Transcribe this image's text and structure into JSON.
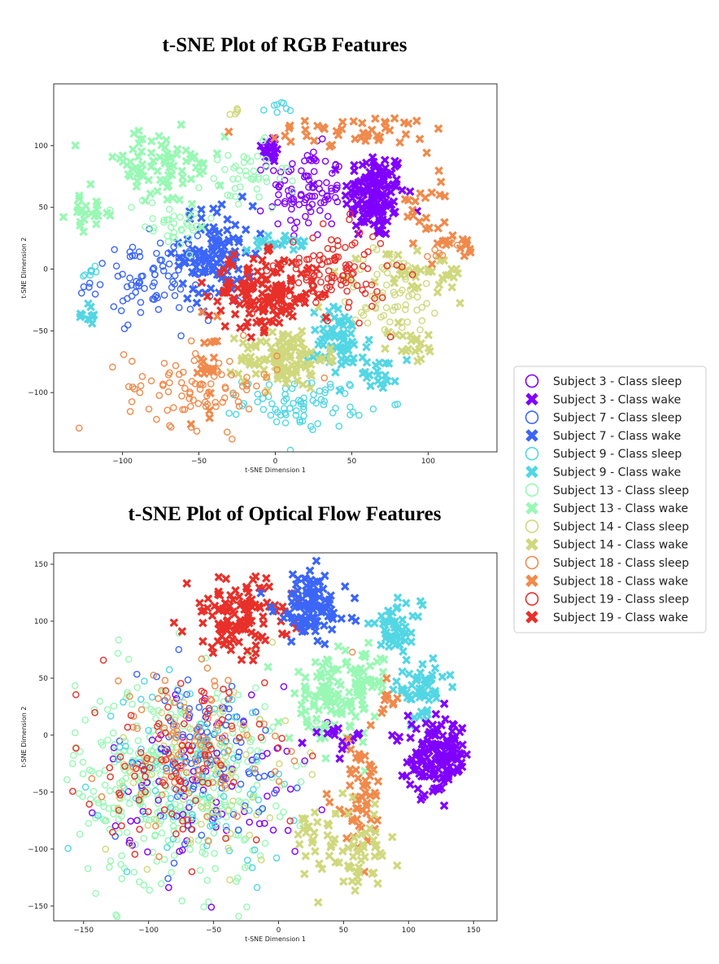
{
  "chart_data": [
    {
      "type": "scatter",
      "title": "t-SNE Plot of RGB Features",
      "xlabel": "t-SNE Dimension 1",
      "ylabel": "t-SNE Dimension 2",
      "xlim": [
        -145,
        145
      ],
      "ylim": [
        -148,
        150
      ],
      "xticks": [
        -100,
        -50,
        0,
        50,
        100
      ],
      "yticks": [
        100,
        50,
        0,
        -50,
        -100
      ],
      "clusters": [
        {
          "series": "Subject 3 - Class wake",
          "cx": 65,
          "cy": 60,
          "sx": 10,
          "sy": 18,
          "n": 140
        },
        {
          "series": "Subject 3 - Class wake",
          "cx": -3,
          "cy": 98,
          "sx": 3,
          "sy": 6,
          "n": 20
        },
        {
          "series": "Subject 3 - Class sleep",
          "cx": 20,
          "cy": 62,
          "sx": 12,
          "sy": 18,
          "n": 95
        },
        {
          "series": "Subject 7 - Class wake",
          "cx": -38,
          "cy": 12,
          "sx": 12,
          "sy": 20,
          "n": 110
        },
        {
          "series": "Subject 7 - Class sleep",
          "cx": -80,
          "cy": -8,
          "sx": 20,
          "sy": 16,
          "n": 95
        },
        {
          "series": "Subject 9 - Class wake",
          "cx": 42,
          "cy": -60,
          "sx": 10,
          "sy": 14,
          "n": 65
        },
        {
          "series": "Subject 9 - Class wake",
          "cx": 68,
          "cy": -83,
          "sx": 6,
          "sy": 7,
          "n": 22
        },
        {
          "series": "Subject 9 - Class wake",
          "cx": 0,
          "cy": 21,
          "sx": 9,
          "sy": 3,
          "n": 22
        },
        {
          "series": "Subject 9 - Class wake",
          "cx": -123,
          "cy": -38,
          "sx": 3,
          "sy": 5,
          "n": 12
        },
        {
          "series": "Subject 9 - Class sleep",
          "cx": 20,
          "cy": -108,
          "sx": 20,
          "sy": 10,
          "n": 75
        },
        {
          "series": "Subject 9 - Class sleep",
          "cx": -120,
          "cy": -2,
          "sx": 4,
          "sy": 4,
          "n": 8
        },
        {
          "series": "Subject 9 - Class sleep",
          "cx": 0,
          "cy": 128,
          "sx": 4,
          "sy": 4,
          "n": 8
        },
        {
          "series": "Subject 13 - Class wake",
          "cx": -78,
          "cy": 82,
          "sx": 22,
          "sy": 16,
          "n": 85
        },
        {
          "series": "Subject 13 - Class wake",
          "cx": -120,
          "cy": 45,
          "sx": 8,
          "sy": 6,
          "n": 20
        },
        {
          "series": "Subject 13 - Class sleep",
          "cx": -20,
          "cy": 72,
          "sx": 14,
          "sy": 14,
          "n": 45
        },
        {
          "series": "Subject 13 - Class sleep",
          "cx": -70,
          "cy": 38,
          "sx": 15,
          "sy": 10,
          "n": 35
        },
        {
          "series": "Subject 14 - Class wake",
          "cx": 5,
          "cy": -72,
          "sx": 14,
          "sy": 12,
          "n": 110
        },
        {
          "series": "Subject 14 - Class wake",
          "cx": 95,
          "cy": -5,
          "sx": 18,
          "sy": 12,
          "n": 40
        },
        {
          "series": "Subject 14 - Class wake",
          "cx": 90,
          "cy": -60,
          "sx": 8,
          "sy": 8,
          "n": 20
        },
        {
          "series": "Subject 14 - Class sleep",
          "cx": 75,
          "cy": -20,
          "sx": 18,
          "sy": 18,
          "n": 70
        },
        {
          "series": "Subject 14 - Class sleep",
          "cx": -25,
          "cy": 125,
          "sx": 3,
          "sy": 3,
          "n": 5
        },
        {
          "series": "Subject 18 - Class wake",
          "cx": 55,
          "cy": 112,
          "sx": 32,
          "sy": 6,
          "n": 45
        },
        {
          "series": "Subject 18 - Class wake",
          "cx": 103,
          "cy": 55,
          "sx": 8,
          "sy": 25,
          "n": 25
        },
        {
          "series": "Subject 18 - Class wake",
          "cx": -45,
          "cy": -78,
          "sx": 5,
          "sy": 20,
          "n": 20
        },
        {
          "series": "Subject 18 - Class wake",
          "cx": 122,
          "cy": 20,
          "sx": 6,
          "sy": 4,
          "n": 12
        },
        {
          "series": "Subject 18 - Class sleep",
          "cx": -48,
          "cy": -95,
          "sx": 25,
          "sy": 16,
          "n": 95
        },
        {
          "series": "Subject 18 - Class sleep",
          "cx": 110,
          "cy": 20,
          "sx": 6,
          "sy": 4,
          "n": 8
        },
        {
          "series": "Subject 19 - Class wake",
          "cx": -8,
          "cy": -20,
          "sx": 18,
          "sy": 15,
          "n": 150
        },
        {
          "series": "Subject 19 - Class sleep",
          "cx": 38,
          "cy": -3,
          "sx": 18,
          "sy": 18,
          "n": 110
        }
      ]
    },
    {
      "type": "scatter",
      "title": "t-SNE Plot of Optical Flow Features",
      "xlabel": "t-SNE Dimension 1",
      "ylabel": "t-SNE Dimension 2",
      "xlim": [
        -173,
        168
      ],
      "ylim": [
        -163,
        160
      ],
      "xticks": [
        -150,
        -100,
        -50,
        0,
        50,
        100,
        150
      ],
      "yticks": [
        150,
        100,
        50,
        0,
        -50,
        -100,
        -150
      ],
      "clusters": [
        {
          "series": "Subject 13 - Class sleep",
          "cx": -80,
          "cy": -40,
          "sx": 38,
          "sy": 45,
          "n": 380
        },
        {
          "series": "Subject 3 - Class sleep",
          "cx": -55,
          "cy": -35,
          "sx": 38,
          "sy": 40,
          "n": 90
        },
        {
          "series": "Subject 7 - Class sleep",
          "cx": -60,
          "cy": -20,
          "sx": 38,
          "sy": 40,
          "n": 95
        },
        {
          "series": "Subject 9 - Class sleep",
          "cx": -60,
          "cy": -30,
          "sx": 38,
          "sy": 40,
          "n": 90
        },
        {
          "series": "Subject 14 - Class sleep",
          "cx": -55,
          "cy": -35,
          "sx": 38,
          "sy": 40,
          "n": 80
        },
        {
          "series": "Subject 18 - Class sleep",
          "cx": -70,
          "cy": -10,
          "sx": 35,
          "sy": 38,
          "n": 95
        },
        {
          "series": "Subject 19 - Class sleep",
          "cx": -80,
          "cy": -25,
          "sx": 35,
          "sy": 38,
          "n": 100
        },
        {
          "series": "Subject 19 - Class wake",
          "cx": -30,
          "cy": 105,
          "sx": 20,
          "sy": 16,
          "n": 120
        },
        {
          "series": "Subject 7 - Class wake",
          "cx": 25,
          "cy": 112,
          "sx": 14,
          "sy": 16,
          "n": 110
        },
        {
          "series": "Subject 9 - Class wake",
          "cx": 90,
          "cy": 95,
          "sx": 10,
          "sy": 10,
          "n": 45
        },
        {
          "series": "Subject 9 - Class wake",
          "cx": 110,
          "cy": 40,
          "sx": 10,
          "sy": 12,
          "n": 55
        },
        {
          "series": "Subject 13 - Class wake",
          "cx": 40,
          "cy": 30,
          "sx": 16,
          "sy": 18,
          "n": 110
        },
        {
          "series": "Subject 13 - Class wake",
          "cx": 68,
          "cy": 50,
          "sx": 10,
          "sy": 10,
          "n": 30
        },
        {
          "series": "Subject 3 - Class wake",
          "cx": 123,
          "cy": -20,
          "sx": 12,
          "sy": 16,
          "n": 140
        },
        {
          "series": "Subject 3 - Class wake",
          "cx": 45,
          "cy": 0,
          "sx": 10,
          "sy": 6,
          "n": 15
        },
        {
          "series": "Subject 18 - Class wake",
          "cx": 62,
          "cy": -55,
          "sx": 10,
          "sy": 25,
          "n": 55
        },
        {
          "series": "Subject 18 - Class wake",
          "cx": 85,
          "cy": 35,
          "sx": 6,
          "sy": 8,
          "n": 10
        },
        {
          "series": "Subject 14 - Class wake",
          "cx": 60,
          "cy": -105,
          "sx": 12,
          "sy": 18,
          "n": 55
        },
        {
          "series": "Subject 14 - Class wake",
          "cx": 25,
          "cy": -85,
          "sx": 8,
          "sy": 10,
          "n": 20
        }
      ]
    }
  ],
  "legend": {
    "placement": "right, between the two plots",
    "entries": [
      {
        "label": "Subject 3 - Class sleep",
        "color": "#8000ff",
        "marker": "circle"
      },
      {
        "label": "Subject 3 - Class wake",
        "color": "#8000ff",
        "marker": "x"
      },
      {
        "label": "Subject 7 - Class sleep",
        "color": "#3c66f8",
        "marker": "circle"
      },
      {
        "label": "Subject 7 - Class wake",
        "color": "#3c66f8",
        "marker": "x"
      },
      {
        "label": "Subject 9 - Class sleep",
        "color": "#53d6e4",
        "marker": "circle"
      },
      {
        "label": "Subject 9 - Class wake",
        "color": "#53d6e4",
        "marker": "x"
      },
      {
        "label": "Subject 13 - Class sleep",
        "color": "#98f8b4",
        "marker": "circle"
      },
      {
        "label": "Subject 13 - Class wake",
        "color": "#98f8b4",
        "marker": "x"
      },
      {
        "label": "Subject 14 - Class sleep",
        "color": "#d0d87e",
        "marker": "circle"
      },
      {
        "label": "Subject 14 - Class wake",
        "color": "#d0d87e",
        "marker": "x"
      },
      {
        "label": "Subject 18 - Class sleep",
        "color": "#f08a4c",
        "marker": "circle"
      },
      {
        "label": "Subject 18 - Class wake",
        "color": "#f08a4c",
        "marker": "x"
      },
      {
        "label": "Subject 19 - Class sleep",
        "color": "#e8302a",
        "marker": "circle"
      },
      {
        "label": "Subject 19 - Class wake",
        "color": "#e8302a",
        "marker": "x"
      }
    ]
  }
}
